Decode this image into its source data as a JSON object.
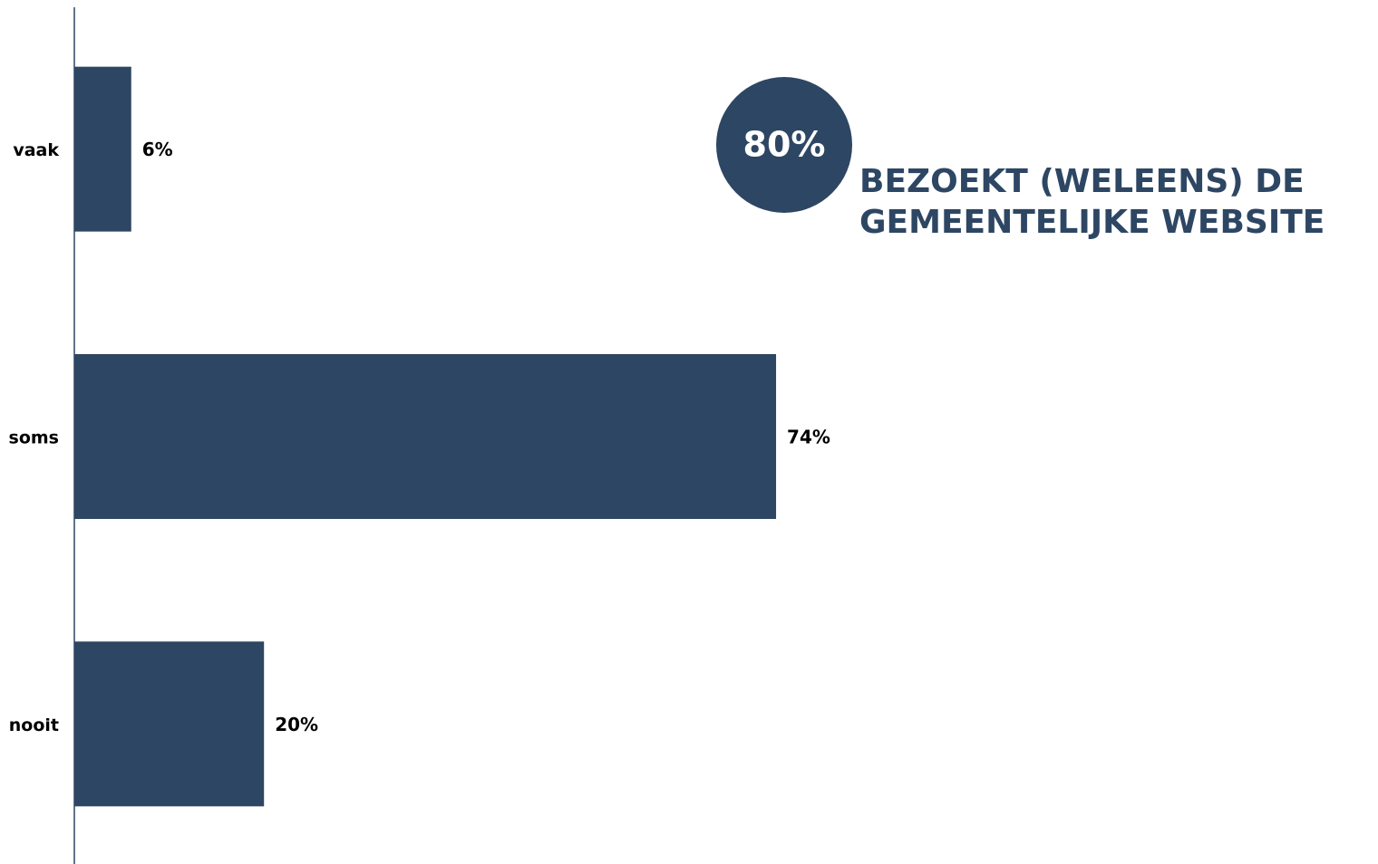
{
  "chart_data": {
    "type": "barh",
    "categories": [
      "vaak",
      "soms",
      "nooit"
    ],
    "values": [
      6,
      74,
      20
    ],
    "value_labels": [
      "6%",
      "74%",
      "20%"
    ],
    "color": "#2d4663",
    "xlim": [
      0,
      100
    ],
    "annotations": [
      {
        "label": "80%",
        "text": [
          "BEZOEKT (WELEENS) DE",
          "GEMEENTELIJKE WEBSITE"
        ]
      }
    ]
  }
}
